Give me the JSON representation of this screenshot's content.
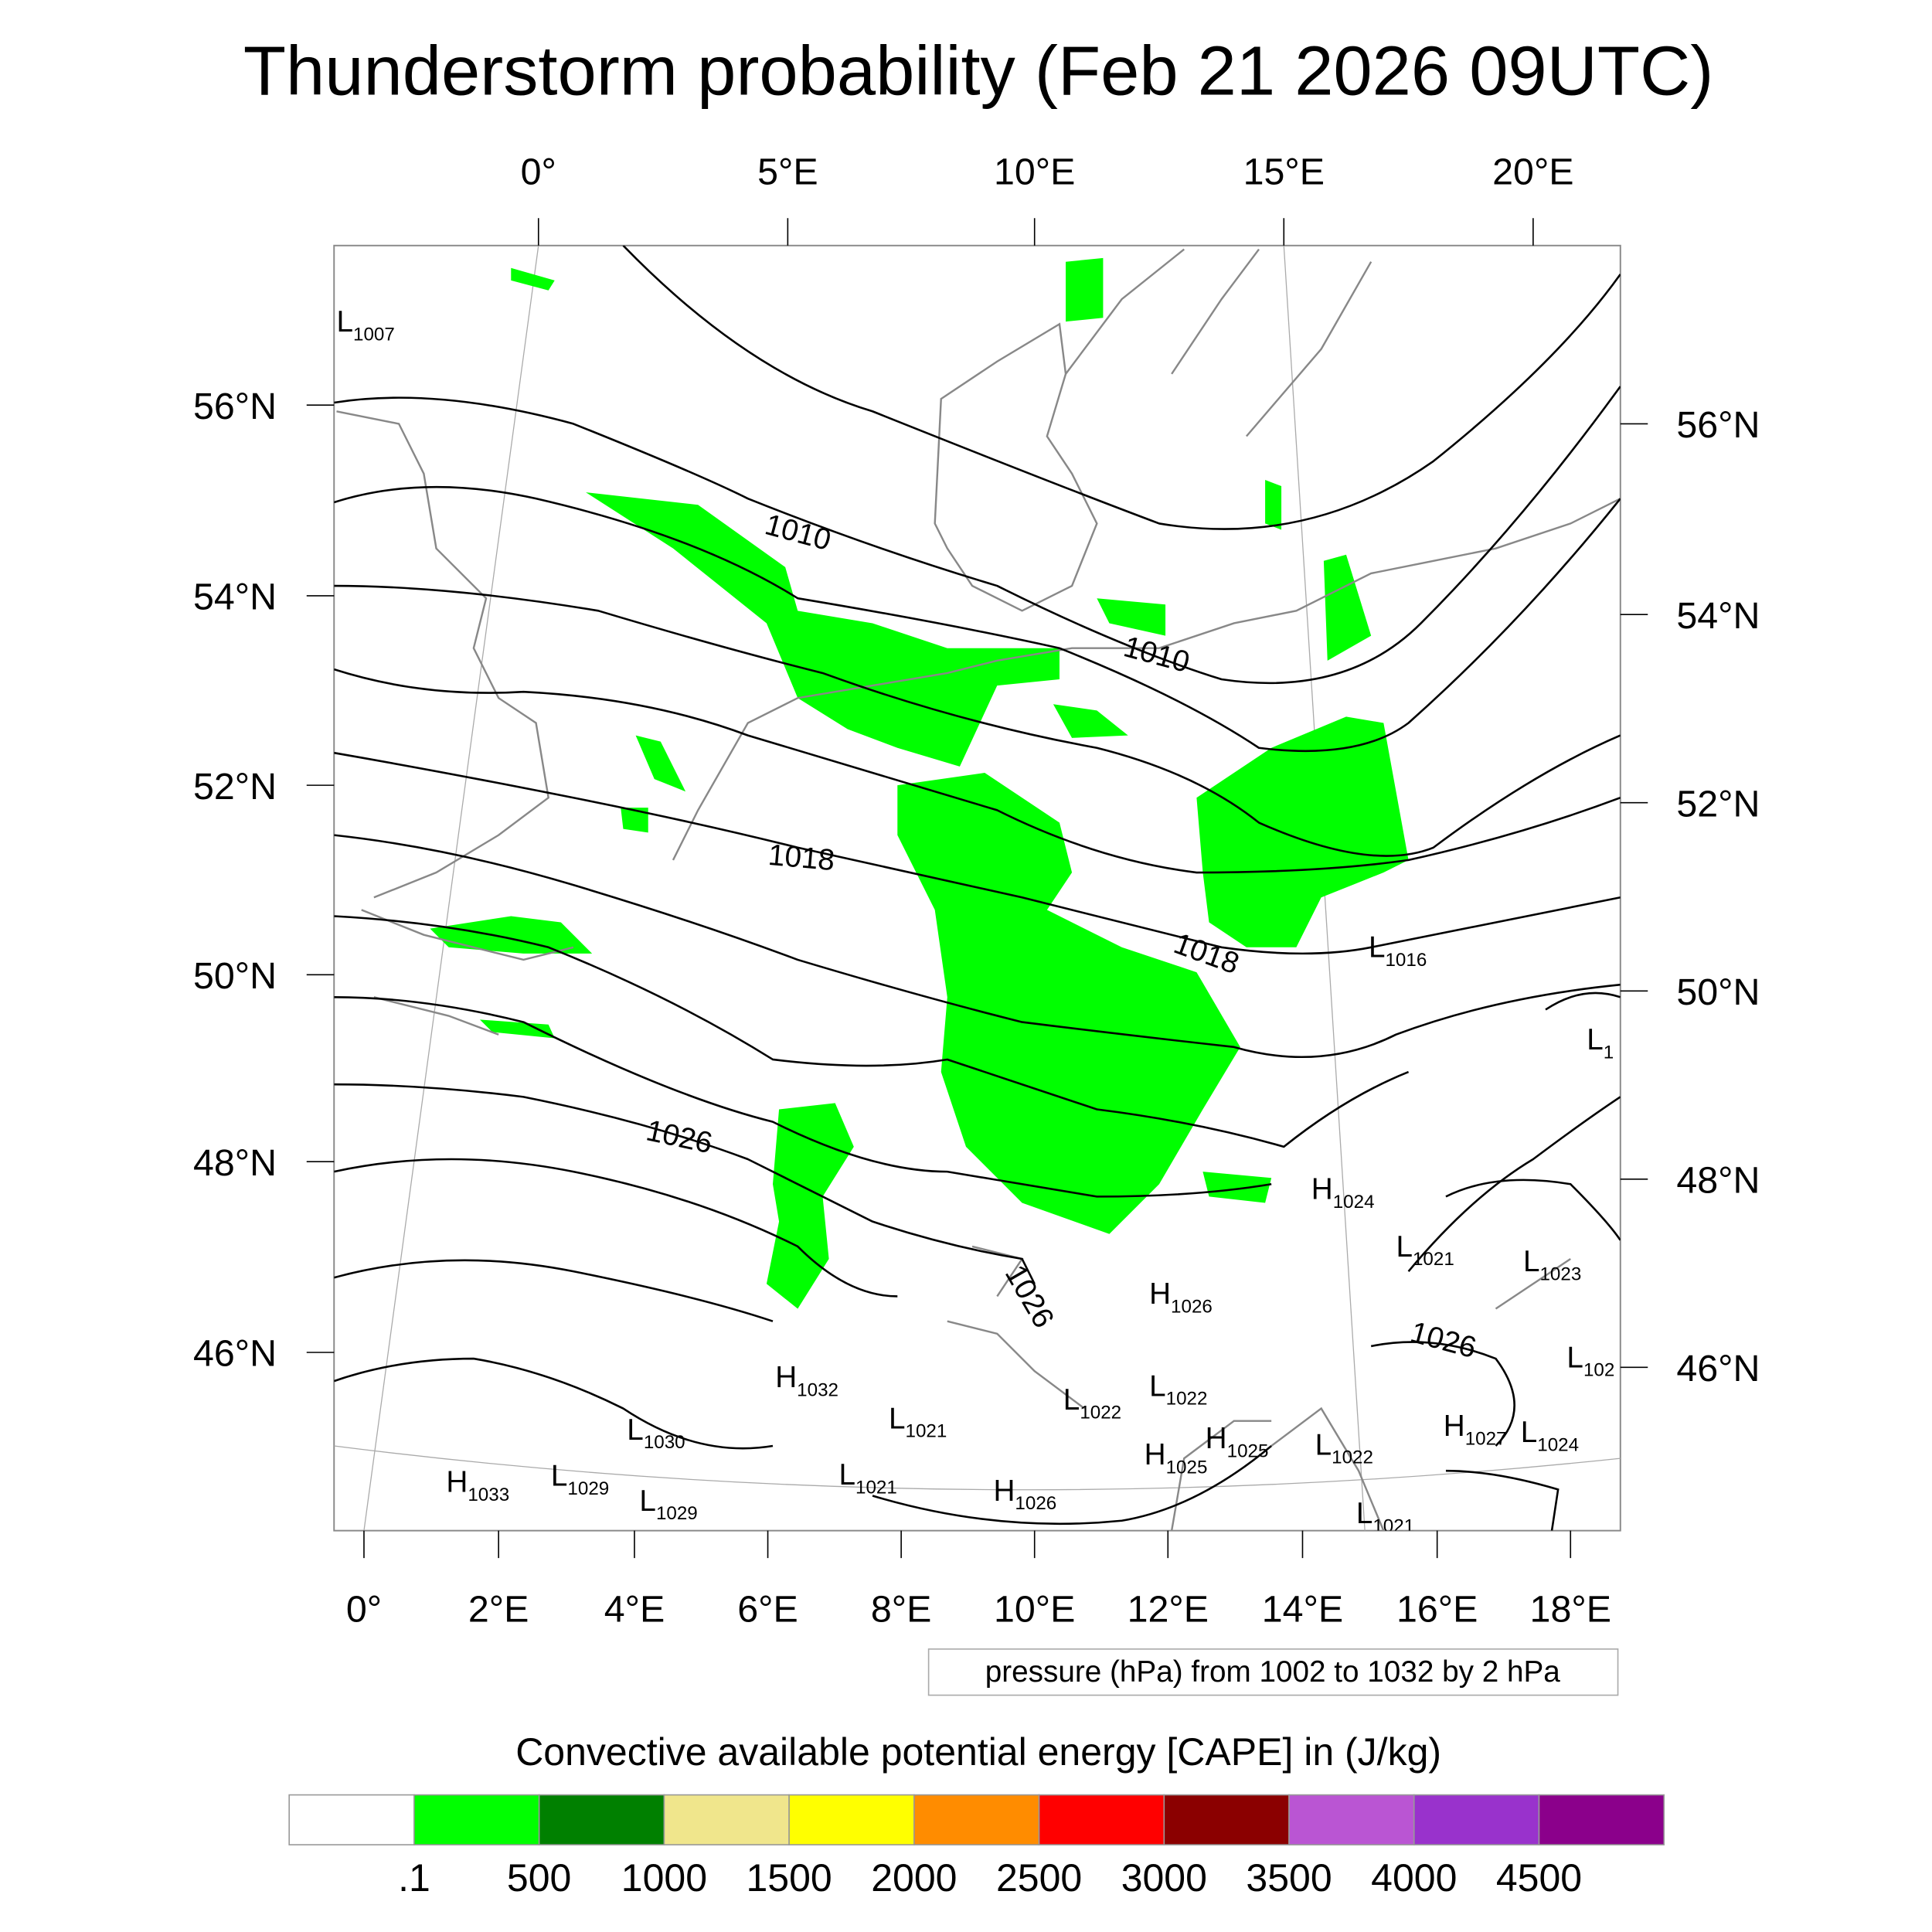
{
  "title": "Thunderstorm probability (Feb 21 2026 09UTC)",
  "axes": {
    "top_lon": [
      "0°",
      "5°E",
      "10°E",
      "15°E",
      "20°E"
    ],
    "bottom_lon": [
      "0°",
      "2°E",
      "4°E",
      "6°E",
      "8°E",
      "10°E",
      "12°E",
      "14°E",
      "16°E",
      "18°E"
    ],
    "left_lat": [
      "56°N",
      "54°N",
      "52°N",
      "50°N",
      "48°N",
      "46°N"
    ],
    "right_lat": [
      "56°N",
      "54°N",
      "52°N",
      "50°N",
      "48°N",
      "46°N"
    ]
  },
  "contour_labels": [
    "1010",
    "1010",
    "1018",
    "1018",
    "1026",
    "1026",
    "1026"
  ],
  "pressure_centers": [
    {
      "t": "L",
      "v": "1007"
    },
    {
      "t": "L",
      "v": "1016"
    },
    {
      "t": "L",
      "v": "1"
    },
    {
      "t": "H",
      "v": "1024"
    },
    {
      "t": "L",
      "v": "1021"
    },
    {
      "t": "L",
      "v": "1023"
    },
    {
      "t": "H",
      "v": "1026"
    },
    {
      "t": "L",
      "v": "102"
    },
    {
      "t": "H",
      "v": "1032"
    },
    {
      "t": "L",
      "v": "1022"
    },
    {
      "t": "L",
      "v": "1022"
    },
    {
      "t": "L",
      "v": "1021"
    },
    {
      "t": "L",
      "v": "1030"
    },
    {
      "t": "H",
      "v": "1027"
    },
    {
      "t": "L",
      "v": "1024"
    },
    {
      "t": "H",
      "v": "1025"
    },
    {
      "t": "L",
      "v": "1022"
    },
    {
      "t": "H",
      "v": "1025"
    },
    {
      "t": "L",
      "v": "1029"
    },
    {
      "t": "H",
      "v": "1033"
    },
    {
      "t": "L",
      "v": "1021"
    },
    {
      "t": "L",
      "v": "1029"
    },
    {
      "t": "H",
      "v": "1026"
    },
    {
      "t": "L",
      "v": "1021"
    }
  ],
  "contour_info": "pressure (hPa) from 1002 to 1032 by 2 hPa",
  "colorbar": {
    "title": "Convective available potential energy [CAPE] in (J/kg)",
    "colors": [
      "#ffffff",
      "#00ff00",
      "#008000",
      "#f0e68c",
      "#ffff00",
      "#ff8c00",
      "#ff0000",
      "#8b0000",
      "#ba55d3",
      "#9932cc",
      "#8b008b"
    ],
    "labels": [
      ".1",
      "500",
      "1000",
      "1500",
      "2000",
      "2500",
      "3000",
      "3500",
      "4000",
      "4500"
    ]
  }
}
